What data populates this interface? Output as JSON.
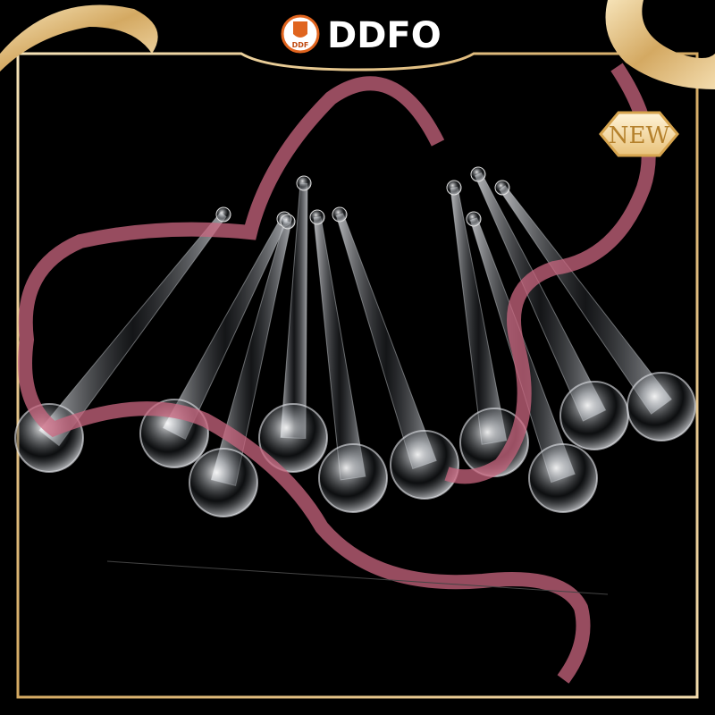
{
  "logo": {
    "mark": "DDF",
    "brand": "DDFO"
  },
  "badge": "NEW"
}
